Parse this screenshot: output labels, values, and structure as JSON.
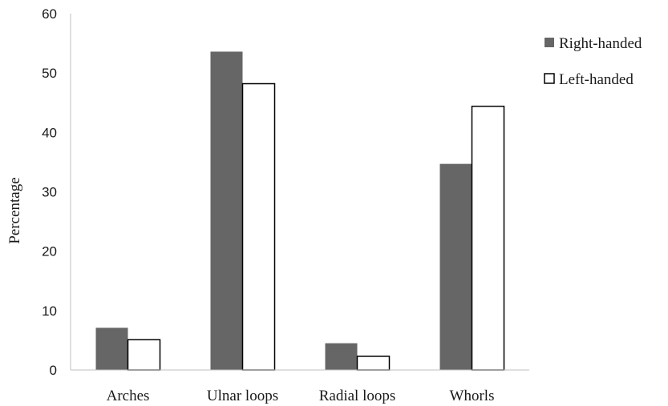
{
  "chart_data": {
    "type": "bar",
    "title": "",
    "xlabel": "",
    "ylabel": "Percentage",
    "ylim": [
      0,
      60
    ],
    "yticks": [
      0,
      10,
      20,
      30,
      40,
      50,
      60
    ],
    "categories": [
      "Arches",
      "Ulnar loops",
      "Radial loops",
      "Whorls"
    ],
    "series": [
      {
        "name": "Right-handed",
        "values": [
          7.1,
          53.6,
          4.5,
          34.7
        ],
        "color": "#666666"
      },
      {
        "name": "Left-handed",
        "values": [
          5.1,
          48.2,
          2.3,
          44.4
        ],
        "color": "#ffffff"
      }
    ],
    "grid": false,
    "legend": "right"
  }
}
